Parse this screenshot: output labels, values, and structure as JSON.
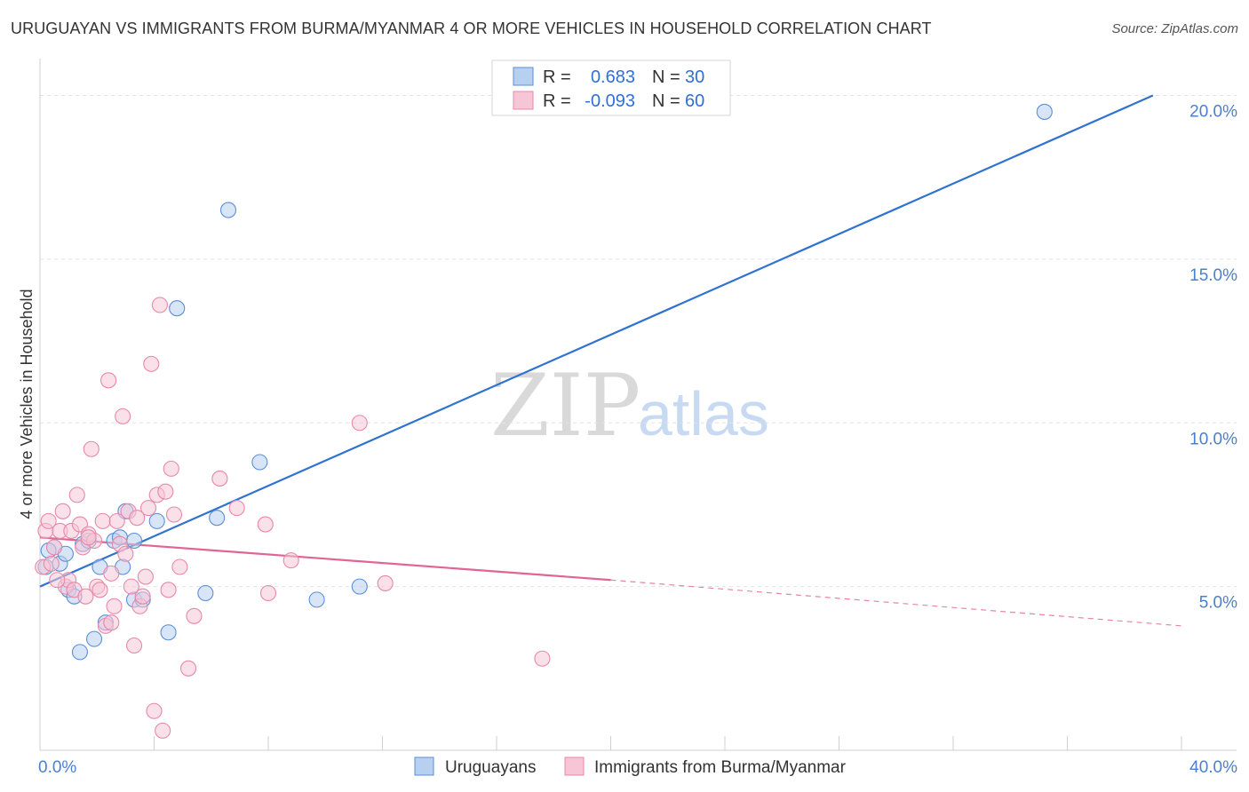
{
  "title": "URUGUAYAN VS IMMIGRANTS FROM BURMA/MYANMAR 4 OR MORE VEHICLES IN HOUSEHOLD CORRELATION CHART",
  "source": "Source: ZipAtlas.com",
  "watermark": {
    "zip": "ZIP",
    "atlas": "atlas"
  },
  "chart_data": {
    "type": "scatter",
    "xlabel": "",
    "ylabel": "4 or more Vehicles in Household",
    "xlim": [
      0,
      40
    ],
    "ylim": [
      0,
      20.8
    ],
    "x_tick_labels": [
      {
        "value": 0,
        "label": "0.0%"
      },
      {
        "value": 40,
        "label": "40.0%"
      }
    ],
    "y_tick_labels": [
      {
        "value": 5,
        "label": "5.0%"
      },
      {
        "value": 10,
        "label": "10.0%"
      },
      {
        "value": 15,
        "label": "15.0%"
      },
      {
        "value": 20,
        "label": "20.0%"
      }
    ],
    "legend": {
      "r_label": "R =",
      "n_label": "N =",
      "entries": [
        {
          "series": "Uruguayans",
          "r": "0.683",
          "n": "30"
        },
        {
          "series": "Immigrants from Burma/Myanmar",
          "r": "-0.093",
          "n": "60"
        }
      ]
    },
    "series": [
      {
        "name": "Uruguayans",
        "color": "#5b8fd6",
        "fill": "#b8d0f0",
        "trend": {
          "x": [
            0,
            39
          ],
          "y": [
            5.0,
            20.0
          ],
          "color": "#2f72cf"
        },
        "points": [
          {
            "x": 0.2,
            "y": 5.6
          },
          {
            "x": 0.5,
            "y": 6.2
          },
          {
            "x": 0.7,
            "y": 5.7
          },
          {
            "x": 0.9,
            "y": 6.0
          },
          {
            "x": 1.0,
            "y": 4.9
          },
          {
            "x": 1.2,
            "y": 4.7
          },
          {
            "x": 1.4,
            "y": 3.0
          },
          {
            "x": 1.5,
            "y": 6.3
          },
          {
            "x": 1.7,
            "y": 6.4
          },
          {
            "x": 1.9,
            "y": 3.4
          },
          {
            "x": 2.1,
            "y": 5.6
          },
          {
            "x": 2.3,
            "y": 3.9
          },
          {
            "x": 2.6,
            "y": 6.4
          },
          {
            "x": 2.8,
            "y": 6.5
          },
          {
            "x": 2.9,
            "y": 5.6
          },
          {
            "x": 3.0,
            "y": 7.3
          },
          {
            "x": 3.3,
            "y": 6.4
          },
          {
            "x": 3.3,
            "y": 4.6
          },
          {
            "x": 3.6,
            "y": 4.6
          },
          {
            "x": 4.1,
            "y": 7.0
          },
          {
            "x": 4.5,
            "y": 3.6
          },
          {
            "x": 4.8,
            "y": 13.5
          },
          {
            "x": 5.8,
            "y": 4.8
          },
          {
            "x": 6.2,
            "y": 7.1
          },
          {
            "x": 6.6,
            "y": 16.5
          },
          {
            "x": 7.7,
            "y": 8.8
          },
          {
            "x": 9.7,
            "y": 4.6
          },
          {
            "x": 11.2,
            "y": 5.0
          },
          {
            "x": 35.2,
            "y": 19.5
          },
          {
            "x": 0.3,
            "y": 6.1
          }
        ]
      },
      {
        "name": "Immigrants from Burma/Myanmar",
        "color": "#e888aa",
        "fill": "#f6c6d6",
        "trend": {
          "x": [
            0,
            20
          ],
          "y": [
            6.5,
            5.2
          ],
          "color": "#e06595"
        },
        "trend_extension": {
          "x": [
            20,
            40
          ],
          "y": [
            5.2,
            3.8
          ]
        },
        "points": [
          {
            "x": 0.1,
            "y": 5.6
          },
          {
            "x": 0.2,
            "y": 6.7
          },
          {
            "x": 0.3,
            "y": 7.0
          },
          {
            "x": 0.4,
            "y": 5.7
          },
          {
            "x": 0.5,
            "y": 6.2
          },
          {
            "x": 0.7,
            "y": 6.7
          },
          {
            "x": 0.8,
            "y": 7.3
          },
          {
            "x": 0.9,
            "y": 5.0
          },
          {
            "x": 1.0,
            "y": 5.2
          },
          {
            "x": 1.1,
            "y": 6.7
          },
          {
            "x": 1.2,
            "y": 4.9
          },
          {
            "x": 1.3,
            "y": 7.8
          },
          {
            "x": 1.4,
            "y": 6.9
          },
          {
            "x": 1.5,
            "y": 6.2
          },
          {
            "x": 1.6,
            "y": 4.7
          },
          {
            "x": 1.7,
            "y": 6.6
          },
          {
            "x": 1.8,
            "y": 9.2
          },
          {
            "x": 1.9,
            "y": 6.4
          },
          {
            "x": 2.0,
            "y": 5.0
          },
          {
            "x": 2.1,
            "y": 4.9
          },
          {
            "x": 2.2,
            "y": 7.0
          },
          {
            "x": 2.3,
            "y": 3.8
          },
          {
            "x": 2.4,
            "y": 11.3
          },
          {
            "x": 2.5,
            "y": 3.9
          },
          {
            "x": 2.6,
            "y": 4.4
          },
          {
            "x": 2.7,
            "y": 7.0
          },
          {
            "x": 2.8,
            "y": 6.3
          },
          {
            "x": 2.9,
            "y": 10.2
          },
          {
            "x": 3.0,
            "y": 6.0
          },
          {
            "x": 3.1,
            "y": 7.3
          },
          {
            "x": 3.2,
            "y": 5.0
          },
          {
            "x": 3.3,
            "y": 3.2
          },
          {
            "x": 3.4,
            "y": 7.1
          },
          {
            "x": 3.5,
            "y": 4.4
          },
          {
            "x": 3.6,
            "y": 4.7
          },
          {
            "x": 3.7,
            "y": 5.3
          },
          {
            "x": 3.8,
            "y": 7.4
          },
          {
            "x": 3.9,
            "y": 11.8
          },
          {
            "x": 4.0,
            "y": 1.2
          },
          {
            "x": 4.1,
            "y": 7.8
          },
          {
            "x": 4.2,
            "y": 13.6
          },
          {
            "x": 4.3,
            "y": 0.6
          },
          {
            "x": 4.4,
            "y": 7.9
          },
          {
            "x": 4.5,
            "y": 4.9
          },
          {
            "x": 4.6,
            "y": 8.6
          },
          {
            "x": 4.7,
            "y": 7.2
          },
          {
            "x": 4.9,
            "y": 5.6
          },
          {
            "x": 5.2,
            "y": 2.5
          },
          {
            "x": 5.4,
            "y": 4.1
          },
          {
            "x": 6.3,
            "y": 8.3
          },
          {
            "x": 6.9,
            "y": 7.4
          },
          {
            "x": 7.9,
            "y": 6.9
          },
          {
            "x": 8.0,
            "y": 4.8
          },
          {
            "x": 8.8,
            "y": 5.8
          },
          {
            "x": 11.2,
            "y": 10.0
          },
          {
            "x": 12.1,
            "y": 5.1
          },
          {
            "x": 17.6,
            "y": 2.8
          },
          {
            "x": 1.7,
            "y": 6.5
          },
          {
            "x": 0.6,
            "y": 5.2
          },
          {
            "x": 2.5,
            "y": 5.4
          }
        ]
      }
    ]
  }
}
